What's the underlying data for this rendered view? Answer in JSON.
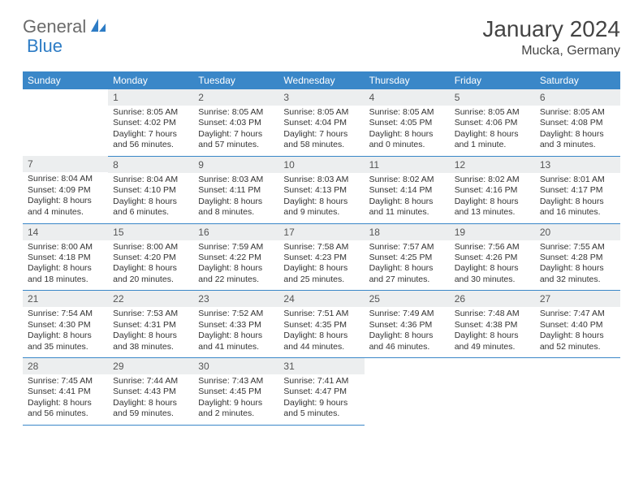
{
  "brand": {
    "part1": "General",
    "part2": "Blue"
  },
  "title": "January 2024",
  "location": "Mucka, Germany",
  "colors": {
    "header_bg": "#3a87c8",
    "header_fg": "#ffffff",
    "daynum_bg": "#eceeef",
    "border": "#3a87c8",
    "brand_gray": "#6b6b6b",
    "brand_blue": "#2d7cc5"
  },
  "weekdays": [
    "Sunday",
    "Monday",
    "Tuesday",
    "Wednesday",
    "Thursday",
    "Friday",
    "Saturday"
  ],
  "weeks": [
    [
      null,
      {
        "n": "1",
        "sr": "8:05 AM",
        "ss": "4:02 PM",
        "dl": "7 hours and 56 minutes."
      },
      {
        "n": "2",
        "sr": "8:05 AM",
        "ss": "4:03 PM",
        "dl": "7 hours and 57 minutes."
      },
      {
        "n": "3",
        "sr": "8:05 AM",
        "ss": "4:04 PM",
        "dl": "7 hours and 58 minutes."
      },
      {
        "n": "4",
        "sr": "8:05 AM",
        "ss": "4:05 PM",
        "dl": "8 hours and 0 minutes."
      },
      {
        "n": "5",
        "sr": "8:05 AM",
        "ss": "4:06 PM",
        "dl": "8 hours and 1 minute."
      },
      {
        "n": "6",
        "sr": "8:05 AM",
        "ss": "4:08 PM",
        "dl": "8 hours and 3 minutes."
      }
    ],
    [
      {
        "n": "7",
        "sr": "8:04 AM",
        "ss": "4:09 PM",
        "dl": "8 hours and 4 minutes."
      },
      {
        "n": "8",
        "sr": "8:04 AM",
        "ss": "4:10 PM",
        "dl": "8 hours and 6 minutes."
      },
      {
        "n": "9",
        "sr": "8:03 AM",
        "ss": "4:11 PM",
        "dl": "8 hours and 8 minutes."
      },
      {
        "n": "10",
        "sr": "8:03 AM",
        "ss": "4:13 PM",
        "dl": "8 hours and 9 minutes."
      },
      {
        "n": "11",
        "sr": "8:02 AM",
        "ss": "4:14 PM",
        "dl": "8 hours and 11 minutes."
      },
      {
        "n": "12",
        "sr": "8:02 AM",
        "ss": "4:16 PM",
        "dl": "8 hours and 13 minutes."
      },
      {
        "n": "13",
        "sr": "8:01 AM",
        "ss": "4:17 PM",
        "dl": "8 hours and 16 minutes."
      }
    ],
    [
      {
        "n": "14",
        "sr": "8:00 AM",
        "ss": "4:18 PM",
        "dl": "8 hours and 18 minutes."
      },
      {
        "n": "15",
        "sr": "8:00 AM",
        "ss": "4:20 PM",
        "dl": "8 hours and 20 minutes."
      },
      {
        "n": "16",
        "sr": "7:59 AM",
        "ss": "4:22 PM",
        "dl": "8 hours and 22 minutes."
      },
      {
        "n": "17",
        "sr": "7:58 AM",
        "ss": "4:23 PM",
        "dl": "8 hours and 25 minutes."
      },
      {
        "n": "18",
        "sr": "7:57 AM",
        "ss": "4:25 PM",
        "dl": "8 hours and 27 minutes."
      },
      {
        "n": "19",
        "sr": "7:56 AM",
        "ss": "4:26 PM",
        "dl": "8 hours and 30 minutes."
      },
      {
        "n": "20",
        "sr": "7:55 AM",
        "ss": "4:28 PM",
        "dl": "8 hours and 32 minutes."
      }
    ],
    [
      {
        "n": "21",
        "sr": "7:54 AM",
        "ss": "4:30 PM",
        "dl": "8 hours and 35 minutes."
      },
      {
        "n": "22",
        "sr": "7:53 AM",
        "ss": "4:31 PM",
        "dl": "8 hours and 38 minutes."
      },
      {
        "n": "23",
        "sr": "7:52 AM",
        "ss": "4:33 PM",
        "dl": "8 hours and 41 minutes."
      },
      {
        "n": "24",
        "sr": "7:51 AM",
        "ss": "4:35 PM",
        "dl": "8 hours and 44 minutes."
      },
      {
        "n": "25",
        "sr": "7:49 AM",
        "ss": "4:36 PM",
        "dl": "8 hours and 46 minutes."
      },
      {
        "n": "26",
        "sr": "7:48 AM",
        "ss": "4:38 PM",
        "dl": "8 hours and 49 minutes."
      },
      {
        "n": "27",
        "sr": "7:47 AM",
        "ss": "4:40 PM",
        "dl": "8 hours and 52 minutes."
      }
    ],
    [
      {
        "n": "28",
        "sr": "7:45 AM",
        "ss": "4:41 PM",
        "dl": "8 hours and 56 minutes."
      },
      {
        "n": "29",
        "sr": "7:44 AM",
        "ss": "4:43 PM",
        "dl": "8 hours and 59 minutes."
      },
      {
        "n": "30",
        "sr": "7:43 AM",
        "ss": "4:45 PM",
        "dl": "9 hours and 2 minutes."
      },
      {
        "n": "31",
        "sr": "7:41 AM",
        "ss": "4:47 PM",
        "dl": "9 hours and 5 minutes."
      },
      null,
      null,
      null
    ]
  ],
  "labels": {
    "sunrise": "Sunrise:",
    "sunset": "Sunset:",
    "daylight": "Daylight:"
  }
}
